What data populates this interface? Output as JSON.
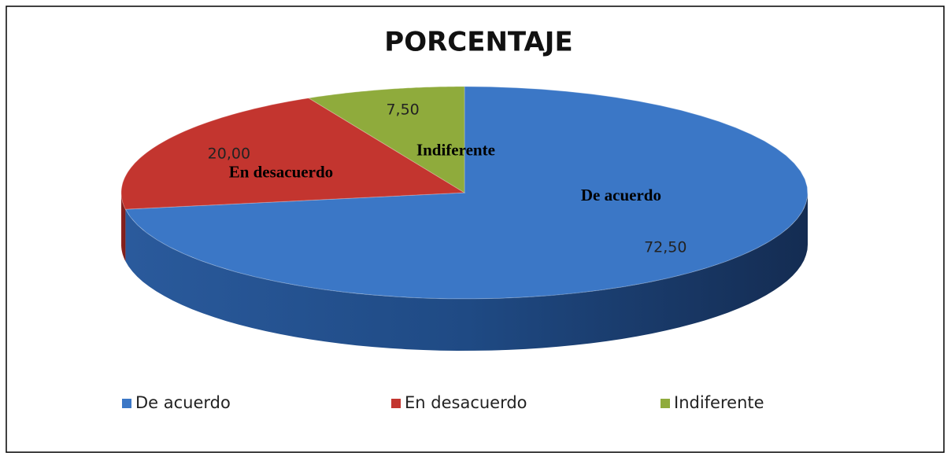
{
  "chart_data": {
    "type": "pie",
    "title": "PORCENTAJE",
    "categories": [
      "De acuerdo",
      "En desacuerdo",
      "Indiferente"
    ],
    "values": [
      72.5,
      20,
      7.5
    ],
    "value_labels": [
      "72,50",
      "20,00",
      "7,50"
    ],
    "colors": [
      "#3b77c6",
      "#c3352f",
      "#8fab3c"
    ],
    "legend": "bottom"
  }
}
